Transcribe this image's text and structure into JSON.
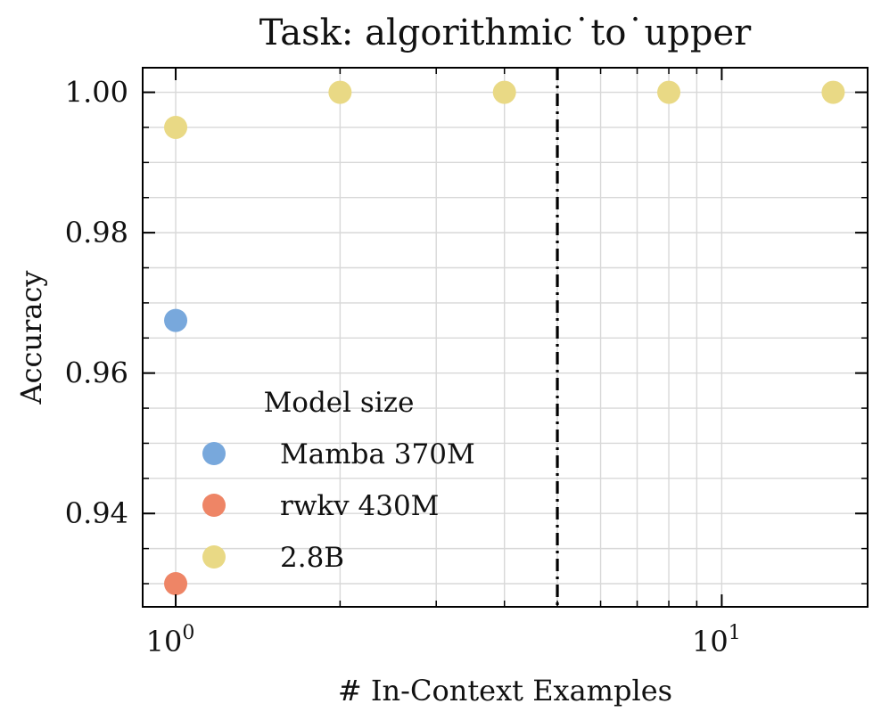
{
  "chart_data": {
    "type": "scatter",
    "title": "Task: algorithmic˙to˙upper",
    "xlabel": "# In-Context Examples",
    "ylabel": "Accuracy",
    "xscale": "log",
    "xlim": [
      0.87,
      18.5
    ],
    "ylim": [
      0.9267,
      1.0035
    ],
    "x_ticks": [
      {
        "value": 1,
        "base": "10",
        "exp": "0"
      },
      {
        "value": 10,
        "base": "10",
        "exp": "1"
      }
    ],
    "y_ticks": [
      {
        "value": 0.94,
        "label": "0.94"
      },
      {
        "value": 0.96,
        "label": "0.96"
      },
      {
        "value": 0.98,
        "label": "0.98"
      },
      {
        "value": 1.0,
        "label": "1.00"
      }
    ],
    "vline": {
      "x": 5,
      "style": "dash-dot",
      "color": "#000000"
    },
    "grid": true,
    "legend": {
      "title": "Model size",
      "location": "lower-left"
    },
    "series": [
      {
        "name": "Mamba 370M",
        "color": "#78a8dc",
        "points": [
          {
            "x": 1,
            "y": 0.9675
          }
        ]
      },
      {
        "name": "rwkv 430M",
        "color": "#ee8566",
        "points": [
          {
            "x": 1,
            "y": 0.93
          }
        ]
      },
      {
        "name": "2.8B",
        "color": "#e9d985",
        "points": [
          {
            "x": 1,
            "y": 0.995
          },
          {
            "x": 2,
            "y": 1.0
          },
          {
            "x": 4,
            "y": 1.0
          },
          {
            "x": 8,
            "y": 1.0
          },
          {
            "x": 16,
            "y": 1.0
          }
        ]
      }
    ]
  }
}
